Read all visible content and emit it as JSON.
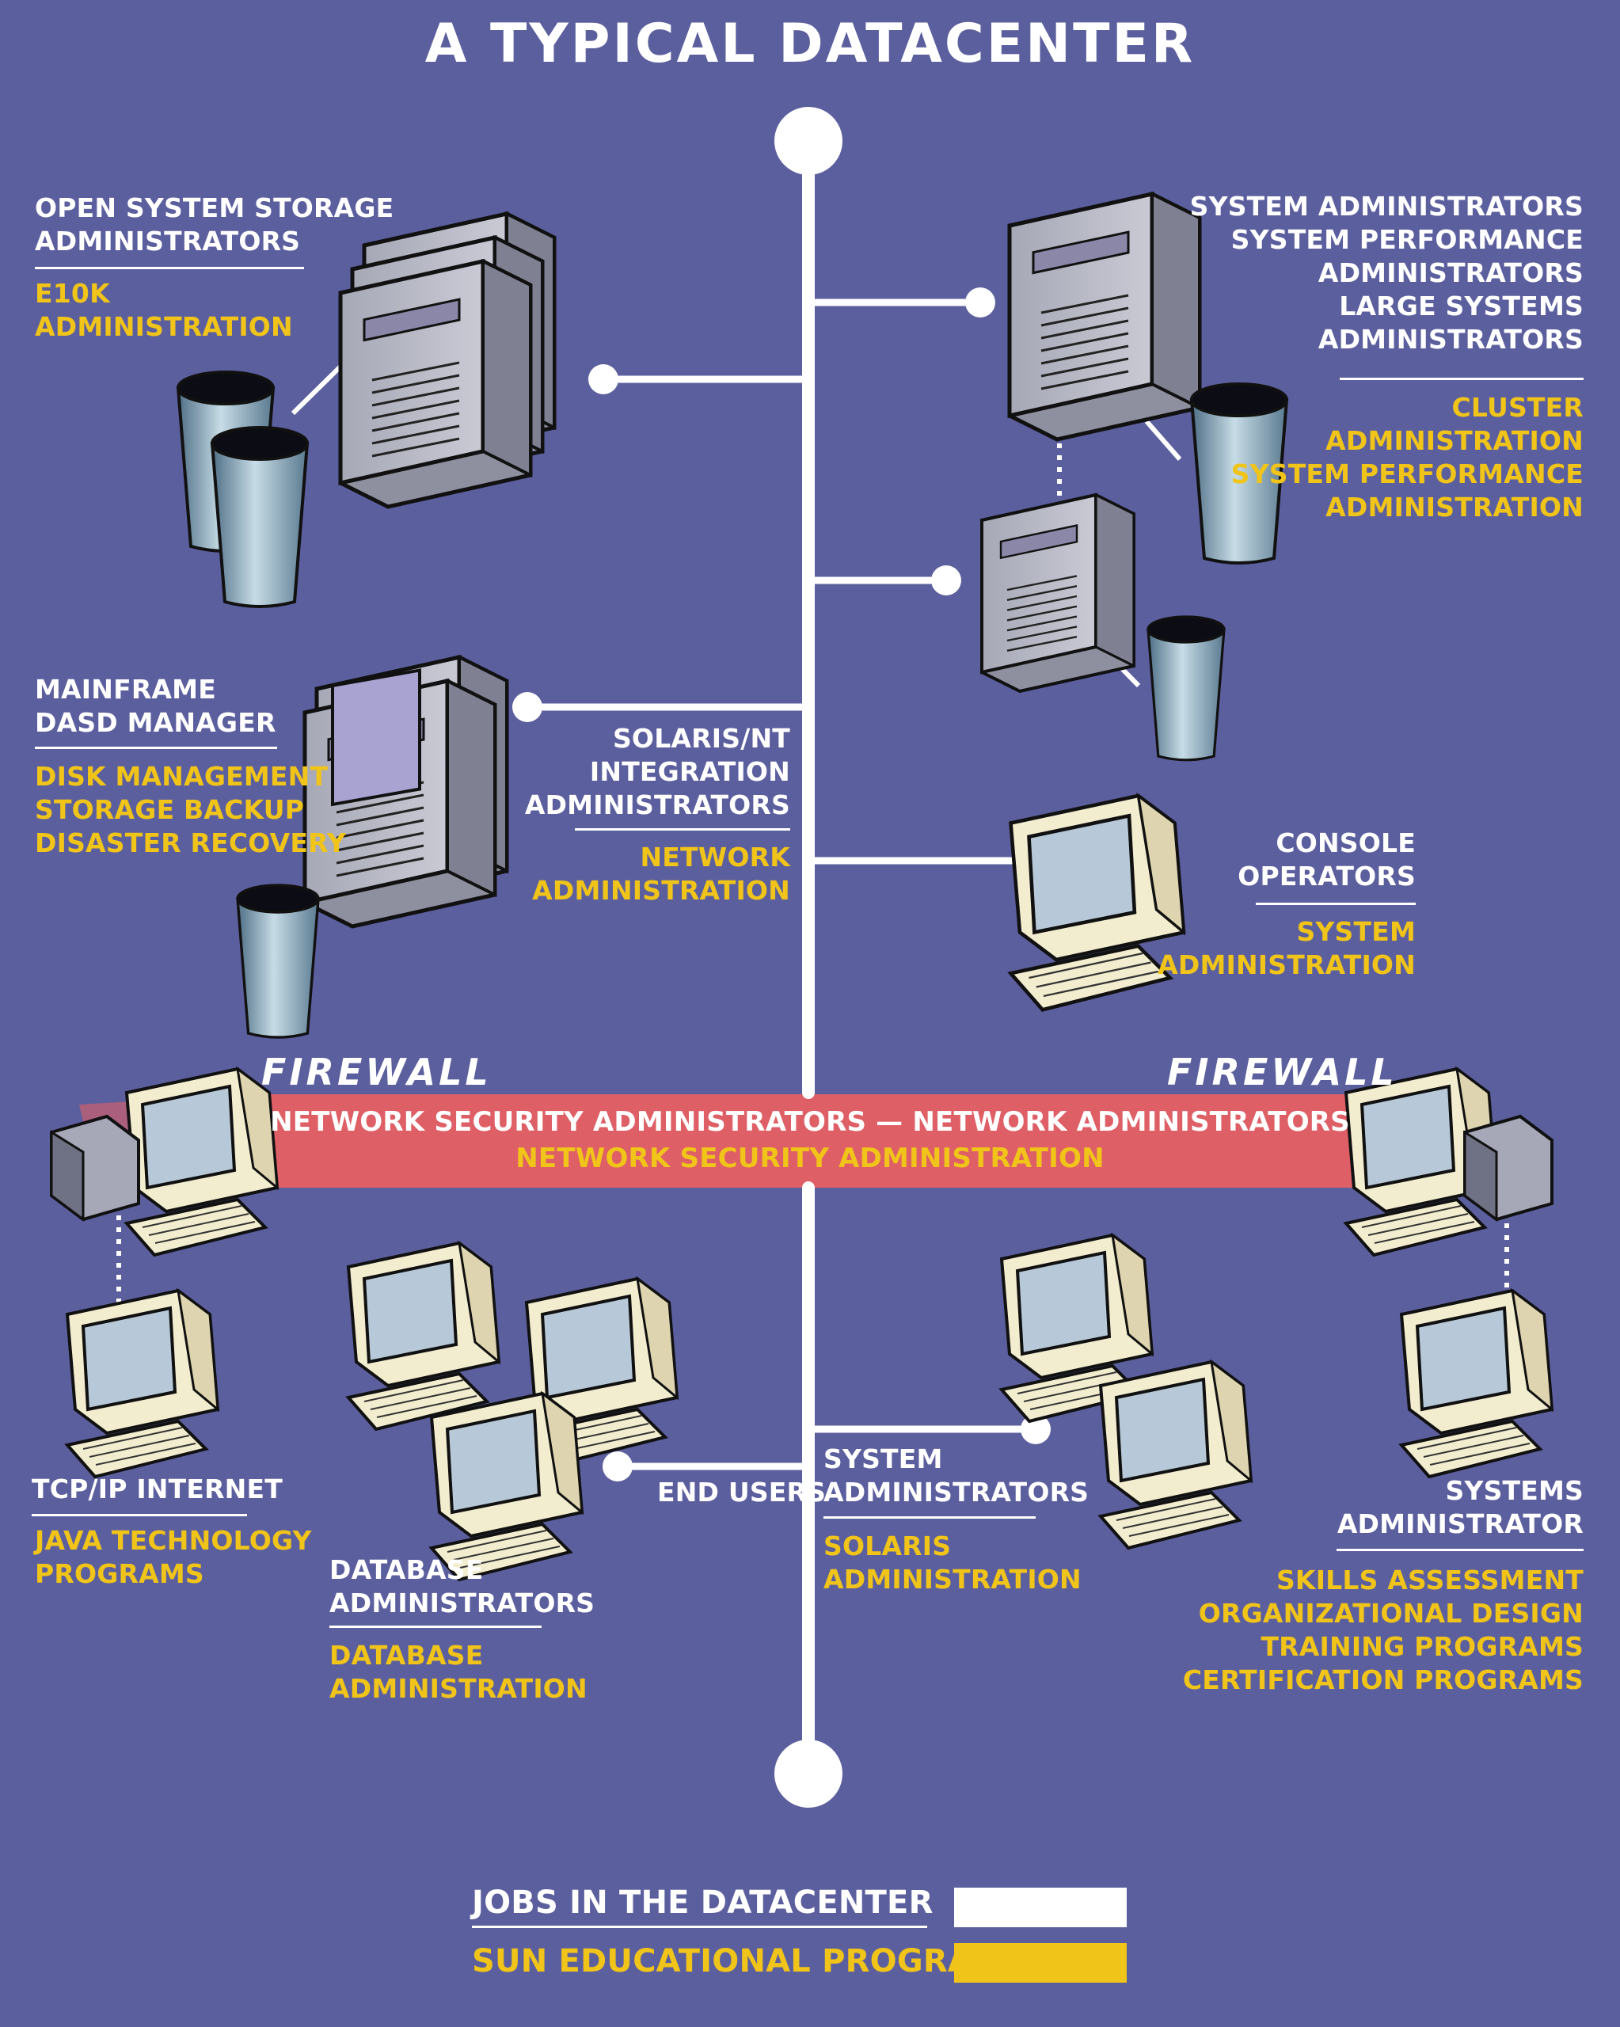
{
  "title": "A TYPICAL DATACENTER",
  "colors": {
    "background": "#5c5f9e",
    "jobs": "#ffffff",
    "programs": "#f0c419",
    "firewall_band": "#de5f66"
  },
  "open_storage": {
    "jobs": [
      "OPEN SYSTEM STORAGE",
      "ADMINISTRATORS"
    ],
    "programs": [
      "E10K",
      "ADMINISTRATION"
    ]
  },
  "sysadmins_top": {
    "jobs": [
      "SYSTEM ADMINISTRATORS",
      "SYSTEM PERFORMANCE",
      "ADMINISTRATORS",
      "LARGE SYSTEMS",
      "ADMINISTRATORS"
    ],
    "programs": [
      "CLUSTER",
      "ADMINISTRATION",
      "SYSTEM PERFORMANCE",
      "ADMINISTRATION"
    ]
  },
  "mainframe": {
    "jobs": [
      "MAINFRAME",
      "DASD MANAGER"
    ],
    "programs": [
      "DISK MANAGEMENT",
      "STORAGE BACKUP",
      "DISASTER RECOVERY"
    ]
  },
  "solaris_nt": {
    "jobs": [
      "SOLARIS/NT",
      "INTEGRATION",
      "ADMINISTRATORS"
    ],
    "programs": [
      "NETWORK",
      "ADMINISTRATION"
    ]
  },
  "console": {
    "jobs": [
      "CONSOLE",
      "OPERATORS"
    ],
    "programs": [
      "SYSTEM",
      "ADMINISTRATION"
    ]
  },
  "firewall": {
    "left_label": "FIREWALL",
    "right_label": "FIREWALL",
    "jobs": "NETWORK SECURITY ADMINISTRATORS — NETWORK ADMINISTRATORS",
    "program": "NETWORK SECURITY ADMINISTRATION"
  },
  "tcpip": {
    "jobs": [
      "TCP/IP INTERNET"
    ],
    "programs": [
      "JAVA TECHNOLOGY",
      "PROGRAMS"
    ]
  },
  "database": {
    "jobs": [
      "DATABASE",
      "ADMINISTRATORS"
    ],
    "programs": [
      "DATABASE",
      "ADMINISTRATION"
    ]
  },
  "end_users": {
    "label": "END USERS"
  },
  "sysadmins_bottom": {
    "jobs": [
      "SYSTEM",
      "ADMINISTRATORS"
    ],
    "programs": [
      "SOLARIS",
      "ADMINISTRATION"
    ]
  },
  "systems_admin": {
    "jobs": [
      "SYSTEMS",
      "ADMINISTRATOR"
    ],
    "programs": [
      "SKILLS ASSESSMENT",
      "ORGANIZATIONAL DESIGN",
      "TRAINING PROGRAMS",
      "CERTIFICATION PROGRAMS"
    ]
  },
  "legend": {
    "jobs_label": "JOBS IN THE DATACENTER",
    "programs_label": "SUN EDUCATIONAL PROGRAMS"
  }
}
